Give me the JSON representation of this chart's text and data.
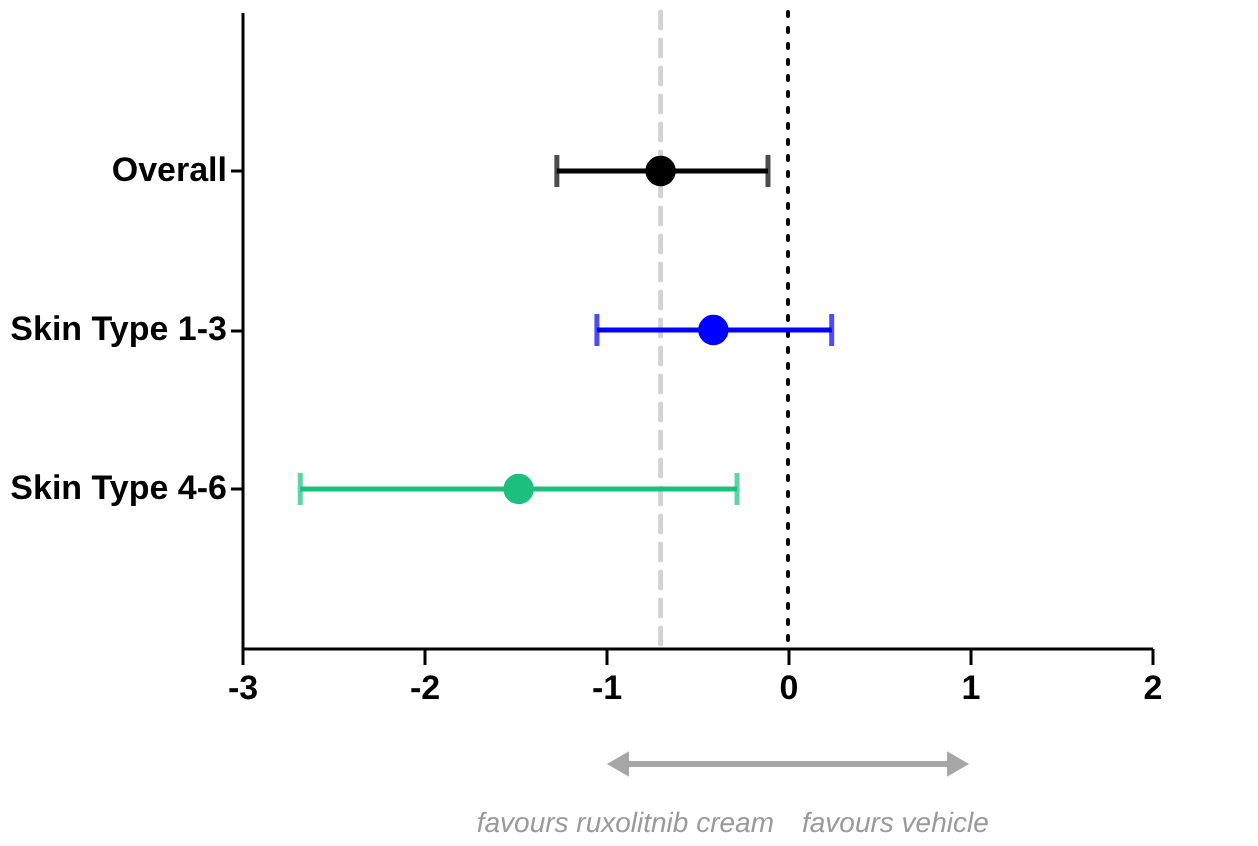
{
  "chart_data": {
    "type": "scatter",
    "orientation": "horizontal",
    "categories": [
      "Overall",
      "Skin Type 1-3",
      "Skin Type 4-6"
    ],
    "values": [
      -0.7,
      -0.41,
      -1.48
    ],
    "errors": [
      [
        -1.27,
        -0.11
      ],
      [
        -1.05,
        0.24
      ],
      [
        -2.68,
        -0.28
      ]
    ],
    "colors": [
      "#000000",
      "#0000ff",
      "#1dbf7c"
    ],
    "marker": "circle",
    "xlim": [
      -3,
      2
    ],
    "xticks": [
      -3,
      -2,
      -1,
      0,
      1,
      2
    ],
    "ref_lines": [
      {
        "axis": "x",
        "value": -0.7,
        "color": "#d3d3d3",
        "line_style": "dashed"
      },
      {
        "axis": "x",
        "value": 0,
        "color": "#000000",
        "line_style": "dotted"
      }
    ],
    "annotations": [
      "favours ruxolitnib cream",
      "favours vehicle"
    ],
    "grid": false,
    "legend": false
  }
}
